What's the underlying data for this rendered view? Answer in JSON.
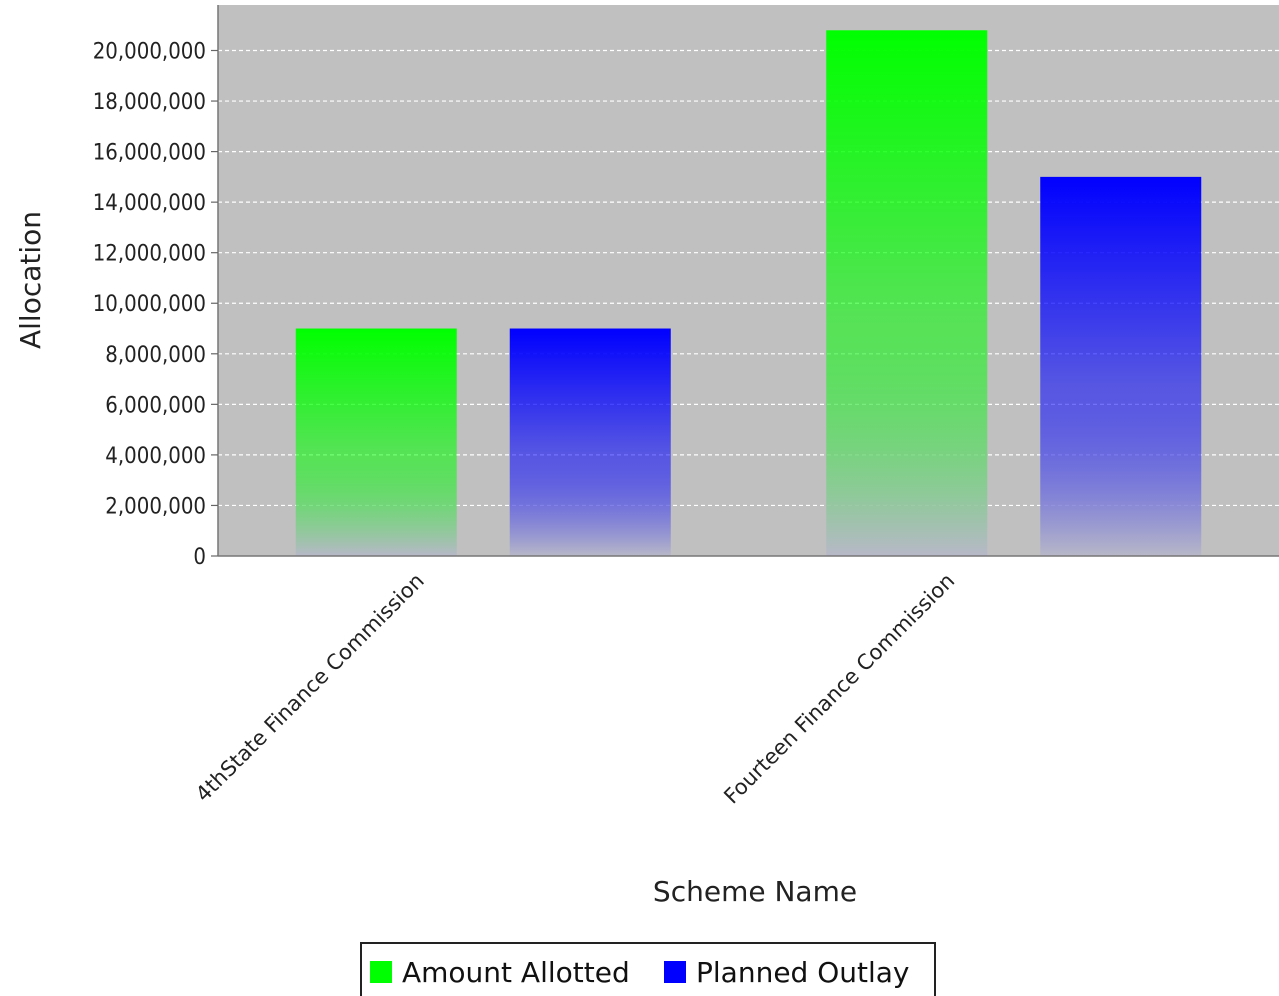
{
  "chart_data": {
    "type": "bar",
    "categories": [
      "4thState Finance Commission",
      "Fourteen Finance Commission"
    ],
    "series": [
      {
        "name": "Amount Allotted",
        "color": "#00ff00",
        "values": [
          9000000,
          20800000
        ]
      },
      {
        "name": "Planned Outlay",
        "color": "#0000ff",
        "values": [
          9000000,
          15000000
        ]
      }
    ],
    "xlabel": "Scheme Name",
    "ylabel": "Allocation",
    "ylim": [
      0,
      21800000
    ],
    "yticks": [
      0,
      2000000,
      4000000,
      6000000,
      8000000,
      10000000,
      12000000,
      14000000,
      16000000,
      18000000,
      20000000
    ],
    "ytick_labels": [
      "0",
      "2,000,000",
      "4,000,000",
      "6,000,000",
      "8,000,000",
      "10,000,000",
      "12,000,000",
      "14,000,000",
      "16,000,000",
      "18,000,000",
      "20,000,000"
    ],
    "grid": true,
    "legend": "bottom",
    "plot_background": "#c0c0c0"
  }
}
